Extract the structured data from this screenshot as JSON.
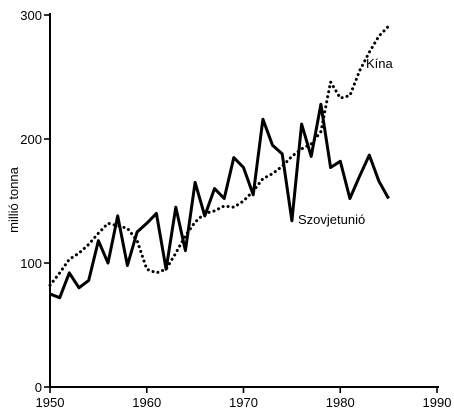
{
  "chart_data": {
    "type": "line",
    "title": "",
    "xlabel": "",
    "ylabel": "millió tonna",
    "xlim": [
      1950,
      1990
    ],
    "ylim": [
      0,
      300
    ],
    "x_ticks": [
      1950,
      1960,
      1970,
      1980,
      1990
    ],
    "y_ticks": [
      0,
      100,
      200,
      300
    ],
    "grid": false,
    "legend": "inline labels",
    "series": [
      {
        "name": "Kína",
        "style": "dotted",
        "color": "#000000",
        "x": [
          1950,
          1951,
          1952,
          1953,
          1954,
          1955,
          1956,
          1957,
          1958,
          1959,
          1960,
          1961,
          1962,
          1963,
          1964,
          1965,
          1966,
          1967,
          1968,
          1969,
          1970,
          1971,
          1972,
          1973,
          1974,
          1975,
          1976,
          1977,
          1978,
          1979,
          1980,
          1981,
          1982,
          1983,
          1984,
          1985
        ],
        "values": [
          82,
          92,
          103,
          108,
          115,
          124,
          132,
          130,
          128,
          118,
          95,
          92,
          95,
          108,
          122,
          133,
          140,
          142,
          146,
          145,
          150,
          158,
          168,
          172,
          178,
          186,
          192,
          196,
          206,
          246,
          233,
          235,
          255,
          270,
          283,
          291
        ]
      },
      {
        "name": "Szovjetunió",
        "style": "solid",
        "color": "#000000",
        "x": [
          1950,
          1951,
          1952,
          1953,
          1954,
          1955,
          1956,
          1957,
          1958,
          1959,
          1960,
          1961,
          1962,
          1963,
          1964,
          1965,
          1966,
          1967,
          1968,
          1969,
          1970,
          1971,
          1972,
          1973,
          1974,
          1975,
          1976,
          1977,
          1978,
          1979,
          1980,
          1981,
          1982,
          1983,
          1984,
          1985
        ],
        "values": [
          75,
          72,
          92,
          80,
          86,
          118,
          100,
          138,
          98,
          125,
          132,
          140,
          95,
          145,
          110,
          165,
          138,
          160,
          152,
          185,
          177,
          155,
          216,
          195,
          188,
          134,
          212,
          186,
          228,
          177,
          182,
          152,
          170,
          187,
          166,
          152
        ]
      }
    ]
  }
}
